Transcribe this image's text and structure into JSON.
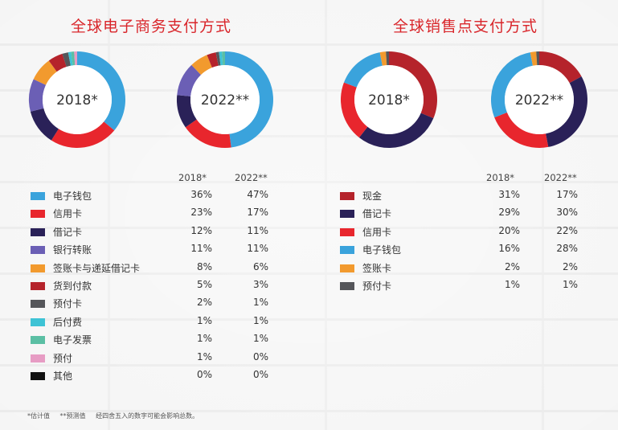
{
  "titles": {
    "left": "全球电子商务支付方式",
    "right": "全球销售点支付方式"
  },
  "year_labels": {
    "a": "2018*",
    "b": "2022**"
  },
  "footnotes": {
    "estimated": "*估计值",
    "forecast": "**预测值",
    "rounding": "经四舍五入的数字可能会影响总数。"
  },
  "chart_data": [
    {
      "type": "pie",
      "title": "全球电子商务支付方式",
      "donut": true,
      "series_labels": [
        "2018*",
        "2022**"
      ],
      "categories": [
        "电子钱包",
        "信用卡",
        "借记卡",
        "银行转账",
        "签账卡与递延借记卡",
        "货到付款",
        "预付卡",
        "后付费",
        "电子发票",
        "预付",
        "其他"
      ],
      "colors": [
        "#3aa3dc",
        "#e8262d",
        "#2a2158",
        "#6b5fb5",
        "#f29a2e",
        "#b5232b",
        "#55565a",
        "#3ec3d5",
        "#5bbfa4",
        "#e79cc4",
        "#111111"
      ],
      "series": [
        {
          "name": "2018*",
          "values": [
            36,
            23,
            12,
            11,
            8,
            5,
            2,
            1,
            1,
            1,
            0
          ],
          "display": [
            "36%",
            "23%",
            "12%",
            "11%",
            "8%",
            "5%",
            "2%",
            "1%",
            "1%",
            "1%",
            "0%"
          ]
        },
        {
          "name": "2022**",
          "values": [
            47,
            17,
            11,
            11,
            6,
            3,
            1,
            1,
            1,
            0,
            0
          ],
          "display": [
            "47%",
            "17%",
            "11%",
            "11%",
            "6%",
            "3%",
            "1%",
            "1%",
            "1%",
            "0%",
            "0%"
          ]
        }
      ]
    },
    {
      "type": "pie",
      "title": "全球销售点支付方式",
      "donut": true,
      "series_labels": [
        "2018*",
        "2022**"
      ],
      "categories": [
        "现金",
        "借记卡",
        "信用卡",
        "电子钱包",
        "签账卡",
        "预付卡"
      ],
      "colors": [
        "#b5232b",
        "#2a2158",
        "#e8262d",
        "#3aa3dc",
        "#f29a2e",
        "#55565a"
      ],
      "series": [
        {
          "name": "2018*",
          "values": [
            31,
            29,
            20,
            16,
            2,
            1
          ],
          "display": [
            "31%",
            "29%",
            "20%",
            "16%",
            "2%",
            "1%"
          ]
        },
        {
          "name": "2022**",
          "values": [
            17,
            30,
            22,
            28,
            2,
            1
          ],
          "display": [
            "17%",
            "30%",
            "22%",
            "28%",
            "2%",
            "1%"
          ]
        }
      ]
    }
  ]
}
